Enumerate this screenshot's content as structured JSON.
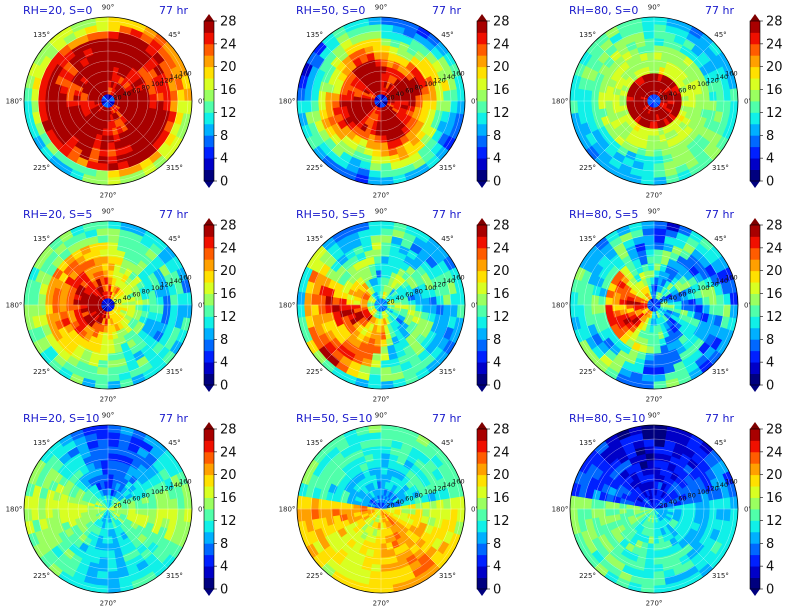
{
  "figure": {
    "colorscale": [
      "#00007f",
      "#0000c8",
      "#0020ff",
      "#0068ff",
      "#00b0ff",
      "#10f0e8",
      "#50ffaa",
      "#9aff60",
      "#d8ff22",
      "#ffe000",
      "#ffa000",
      "#ff5c00",
      "#f01000",
      "#a80000"
    ],
    "under_color": "#00007f",
    "over_color": "#7f0000"
  },
  "chart_data": [
    {
      "type": "heatmap",
      "id": "p00",
      "title": "RH=20, S=0",
      "time_label": "77 hr",
      "angle_ticks": [
        "90°",
        "45°",
        "0°",
        "315°",
        "270°",
        "225°",
        "180°",
        "135°"
      ],
      "radial_ticks": [
        "20",
        "40",
        "60",
        "80",
        "100",
        "120",
        "140",
        "160"
      ],
      "colorbar": {
        "ticks": [
          "0",
          "4",
          "8",
          "12",
          "16",
          "20",
          "24",
          "28"
        ],
        "vmin": 0,
        "vmax": 28,
        "extend": "both"
      }
    },
    {
      "type": "heatmap",
      "id": "p01",
      "title": "RH=50, S=0",
      "time_label": "77 hr",
      "angle_ticks": [
        "90°",
        "45°",
        "0°",
        "315°",
        "270°",
        "225°",
        "180°",
        "135°"
      ],
      "radial_ticks": [
        "20",
        "40",
        "60",
        "80",
        "100",
        "120",
        "140",
        "160"
      ],
      "colorbar": {
        "ticks": [
          "0",
          "4",
          "8",
          "12",
          "16",
          "20",
          "24",
          "28"
        ],
        "vmin": 0,
        "vmax": 28,
        "extend": "both"
      }
    },
    {
      "type": "heatmap",
      "id": "p02",
      "title": "RH=80, S=0",
      "time_label": "77 hr",
      "angle_ticks": [
        "90°",
        "45°",
        "0°",
        "315°",
        "270°",
        "225°",
        "180°",
        "135°"
      ],
      "radial_ticks": [
        "20",
        "40",
        "60",
        "80",
        "100",
        "120",
        "140",
        "160"
      ],
      "colorbar": {
        "ticks": [
          "0",
          "4",
          "8",
          "12",
          "16",
          "20",
          "24",
          "28"
        ],
        "vmin": 0,
        "vmax": 28,
        "extend": "both"
      }
    },
    {
      "type": "heatmap",
      "id": "p10",
      "title": "RH=20, S=5",
      "time_label": "77 hr",
      "angle_ticks": [
        "90°",
        "45°",
        "0°",
        "315°",
        "270°",
        "225°",
        "180°",
        "135°"
      ],
      "radial_ticks": [
        "20",
        "40",
        "60",
        "80",
        "100",
        "120",
        "140",
        "160"
      ],
      "colorbar": {
        "ticks": [
          "0",
          "4",
          "8",
          "12",
          "16",
          "20",
          "24",
          "28"
        ],
        "vmin": 0,
        "vmax": 28,
        "extend": "both"
      }
    },
    {
      "type": "heatmap",
      "id": "p11",
      "title": "RH=50, S=5",
      "time_label": "77 hr",
      "angle_ticks": [
        "90°",
        "45°",
        "0°",
        "315°",
        "270°",
        "225°",
        "180°",
        "135°"
      ],
      "radial_ticks": [
        "20",
        "40",
        "60",
        "80",
        "100",
        "120",
        "140",
        "160"
      ],
      "colorbar": {
        "ticks": [
          "0",
          "4",
          "8",
          "12",
          "16",
          "20",
          "24",
          "28"
        ],
        "vmin": 0,
        "vmax": 28,
        "extend": "both"
      }
    },
    {
      "type": "heatmap",
      "id": "p12",
      "title": "RH=80, S=5",
      "time_label": "77 hr",
      "angle_ticks": [
        "90°",
        "45°",
        "0°",
        "315°",
        "270°",
        "225°",
        "180°",
        "135°"
      ],
      "radial_ticks": [
        "20",
        "40",
        "60",
        "80",
        "100",
        "120",
        "140",
        "160"
      ],
      "colorbar": {
        "ticks": [
          "0",
          "4",
          "8",
          "12",
          "16",
          "20",
          "24",
          "28"
        ],
        "vmin": 0,
        "vmax": 28,
        "extend": "both"
      }
    },
    {
      "type": "heatmap",
      "id": "p20",
      "title": "RH=20, S=10",
      "time_label": "77 hr",
      "angle_ticks": [
        "90°",
        "45°",
        "0°",
        "315°",
        "270°",
        "225°",
        "180°",
        "135°"
      ],
      "radial_ticks": [
        "20",
        "40",
        "60",
        "80",
        "100",
        "120",
        "140",
        "160"
      ],
      "colorbar": {
        "ticks": [
          "0",
          "4",
          "8",
          "12",
          "16",
          "20",
          "24",
          "28"
        ],
        "vmin": 0,
        "vmax": 28,
        "extend": "both"
      }
    },
    {
      "type": "heatmap",
      "id": "p21",
      "title": "RH=50, S=10",
      "time_label": "77 hr",
      "angle_ticks": [
        "90°",
        "45°",
        "0°",
        "315°",
        "270°",
        "225°",
        "180°",
        "135°"
      ],
      "radial_ticks": [
        "20",
        "40",
        "60",
        "80",
        "100",
        "120",
        "140",
        "160"
      ],
      "colorbar": {
        "ticks": [
          "0",
          "4",
          "8",
          "12",
          "16",
          "20",
          "24",
          "28"
        ],
        "vmin": 0,
        "vmax": 28,
        "extend": "both"
      }
    },
    {
      "type": "heatmap",
      "id": "p22",
      "title": "RH=80, S=10",
      "time_label": "77 hr",
      "angle_ticks": [
        "90°",
        "45°",
        "0°",
        "315°",
        "270°",
        "225°",
        "180°",
        "135°"
      ],
      "radial_ticks": [
        "20",
        "40",
        "60",
        "80",
        "100",
        "120",
        "140",
        "160"
      ],
      "colorbar": {
        "ticks": [
          "0",
          "4",
          "8",
          "12",
          "16",
          "20",
          "24",
          "28"
        ],
        "vmin": 0,
        "vmax": 28,
        "extend": "both"
      }
    }
  ]
}
